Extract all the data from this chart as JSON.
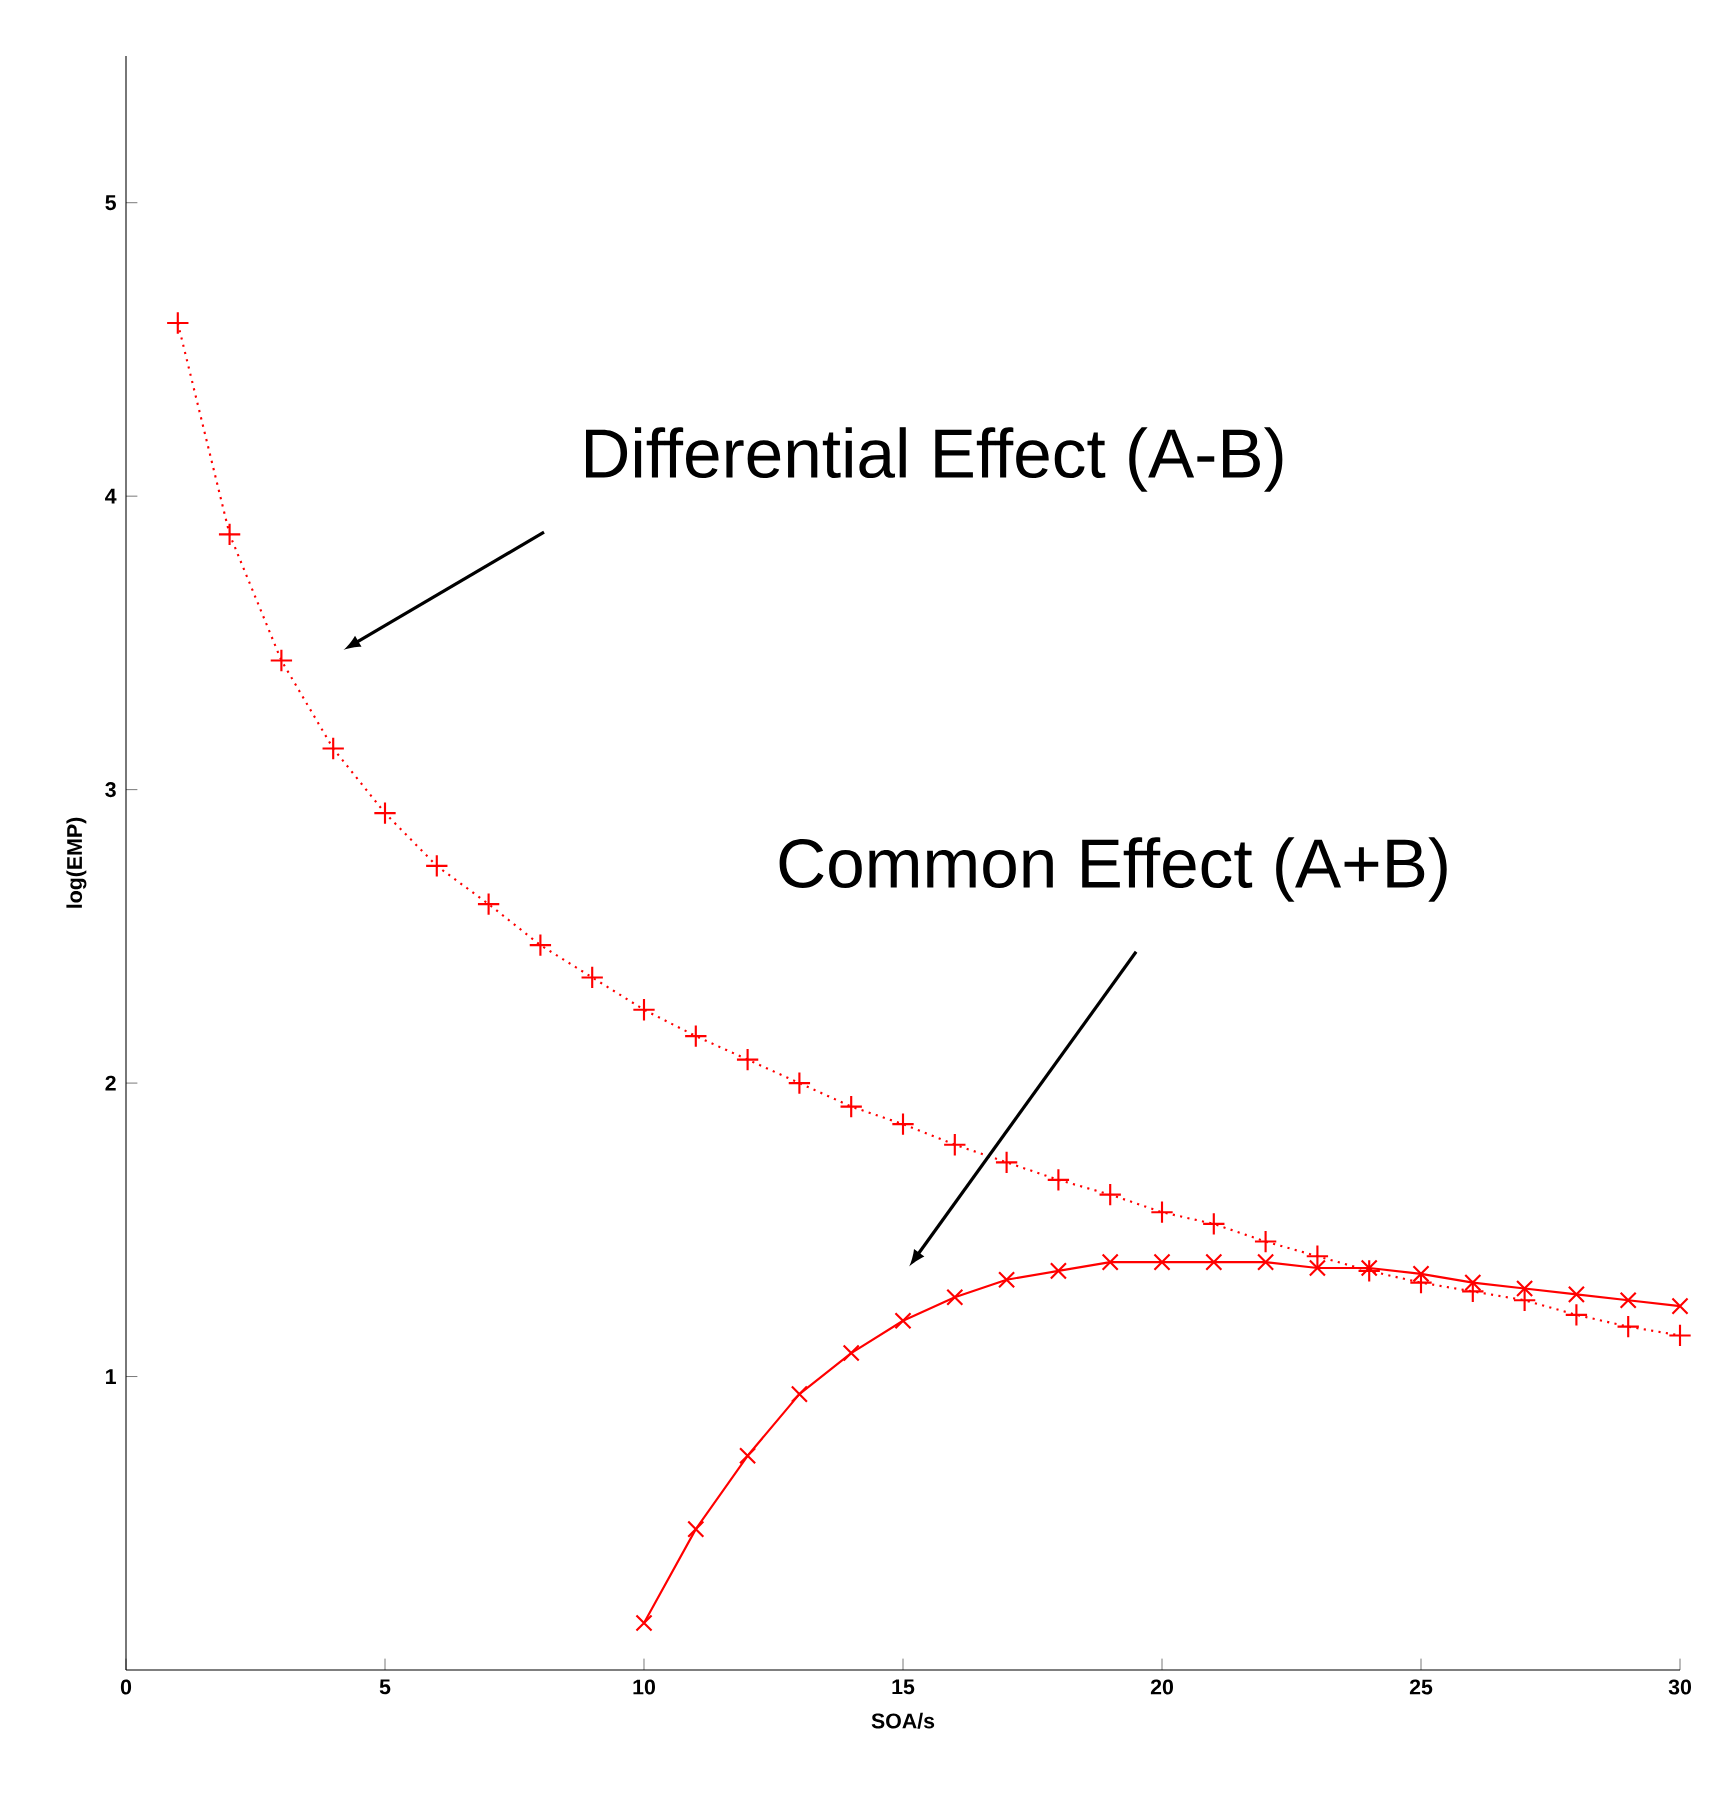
{
  "chart_data": {
    "type": "line",
    "xlabel": "SOA/s",
    "ylabel": "log(EMP)",
    "xlim": [
      0,
      30
    ],
    "ylim": [
      0,
      5.5
    ],
    "xticks": [
      0,
      5,
      10,
      15,
      20,
      25,
      30
    ],
    "yticks": [
      1,
      2,
      3,
      4,
      5
    ],
    "grid": false,
    "series": [
      {
        "color": "#ff0000",
        "marker": "plus",
        "line_style": "dotted",
        "x": [
          1,
          2,
          3,
          4,
          5,
          6,
          7,
          8,
          9,
          10,
          11,
          12,
          13,
          14,
          15,
          16,
          17,
          18,
          19,
          20,
          21,
          22,
          23,
          24,
          25,
          26,
          27,
          28,
          29,
          30
        ],
        "values": [
          4.59,
          3.87,
          3.44,
          3.14,
          2.92,
          2.74,
          2.61,
          2.47,
          2.36,
          2.25,
          2.16,
          2.08,
          2.0,
          1.92,
          1.86,
          1.79,
          1.73,
          1.67,
          1.62,
          1.56,
          1.52,
          1.46,
          1.41,
          1.36,
          1.32,
          1.29,
          1.26,
          1.21,
          1.17,
          1.14
        ]
      },
      {
        "color": "#ff0000",
        "marker": "cross",
        "line_style": "solid",
        "x": [
          10,
          11,
          12,
          13,
          14,
          15,
          16,
          17,
          18,
          19,
          20,
          21,
          22,
          23,
          24,
          25,
          26,
          27,
          28,
          29,
          30
        ],
        "values": [
          0.16,
          0.48,
          0.73,
          0.94,
          1.08,
          1.19,
          1.27,
          1.33,
          1.36,
          1.39,
          1.39,
          1.39,
          1.39,
          1.37,
          1.37,
          1.35,
          1.32,
          1.3,
          1.28,
          1.26,
          1.24
        ]
      }
    ],
    "annotations": [
      "Differential Effect (A-B)",
      "Common Effect (A+B)"
    ]
  }
}
